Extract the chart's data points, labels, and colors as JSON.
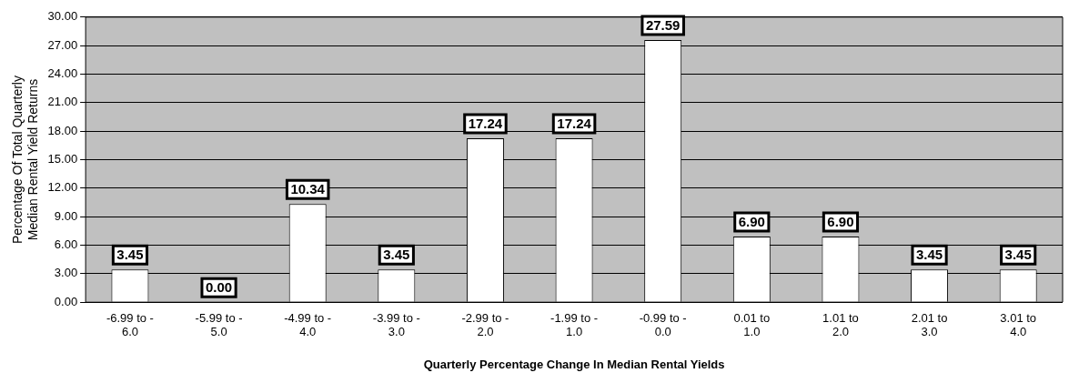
{
  "chart_data": {
    "type": "bar",
    "xlabel": "Quarterly Percentage Change In Median Rental Yields",
    "ylabel": "Percentage Of Total Quarterly Median Rental Yield Returns",
    "categories": [
      "-6.99 to - 6.0",
      "-5.99 to - 5.0",
      "-4.99 to - 4.0",
      "-3.99 to - 3.0",
      "-2.99 to - 2.0",
      "-1.99 to - 1.0",
      "-0.99 to - 0.0",
      "0.01 to 1.0",
      "1.01 to 2.0",
      "2.01 to 3.0",
      "3.01 to 4.0"
    ],
    "values": [
      3.45,
      0,
      10.34,
      3.45,
      17.24,
      17.24,
      27.59,
      6.9,
      6.9,
      3.45,
      3.45
    ],
    "value_labels": [
      "3.45",
      "0.00",
      "10.34",
      "3.45",
      "17.24",
      "17.24",
      "27.59",
      "6.90",
      "6.90",
      "3.45",
      "3.45"
    ],
    "color": "#ffffff",
    "ylim": [
      0,
      30
    ],
    "yticks": [
      {
        "value": 0,
        "label": "0.00"
      },
      {
        "value": 3,
        "label": "3.00"
      },
      {
        "value": 6,
        "label": "6.00"
      },
      {
        "value": 9,
        "label": "9.00"
      },
      {
        "value": 12,
        "label": "12.00"
      },
      {
        "value": 15,
        "label": "15.00"
      },
      {
        "value": 18,
        "label": "18.00"
      },
      {
        "value": 21,
        "label": "21.00"
      },
      {
        "value": 24,
        "label": "24.00"
      },
      {
        "value": 27,
        "label": "27.00"
      },
      {
        "value": 30,
        "label": "30.00"
      }
    ],
    "grid": "y",
    "legend": false
  }
}
